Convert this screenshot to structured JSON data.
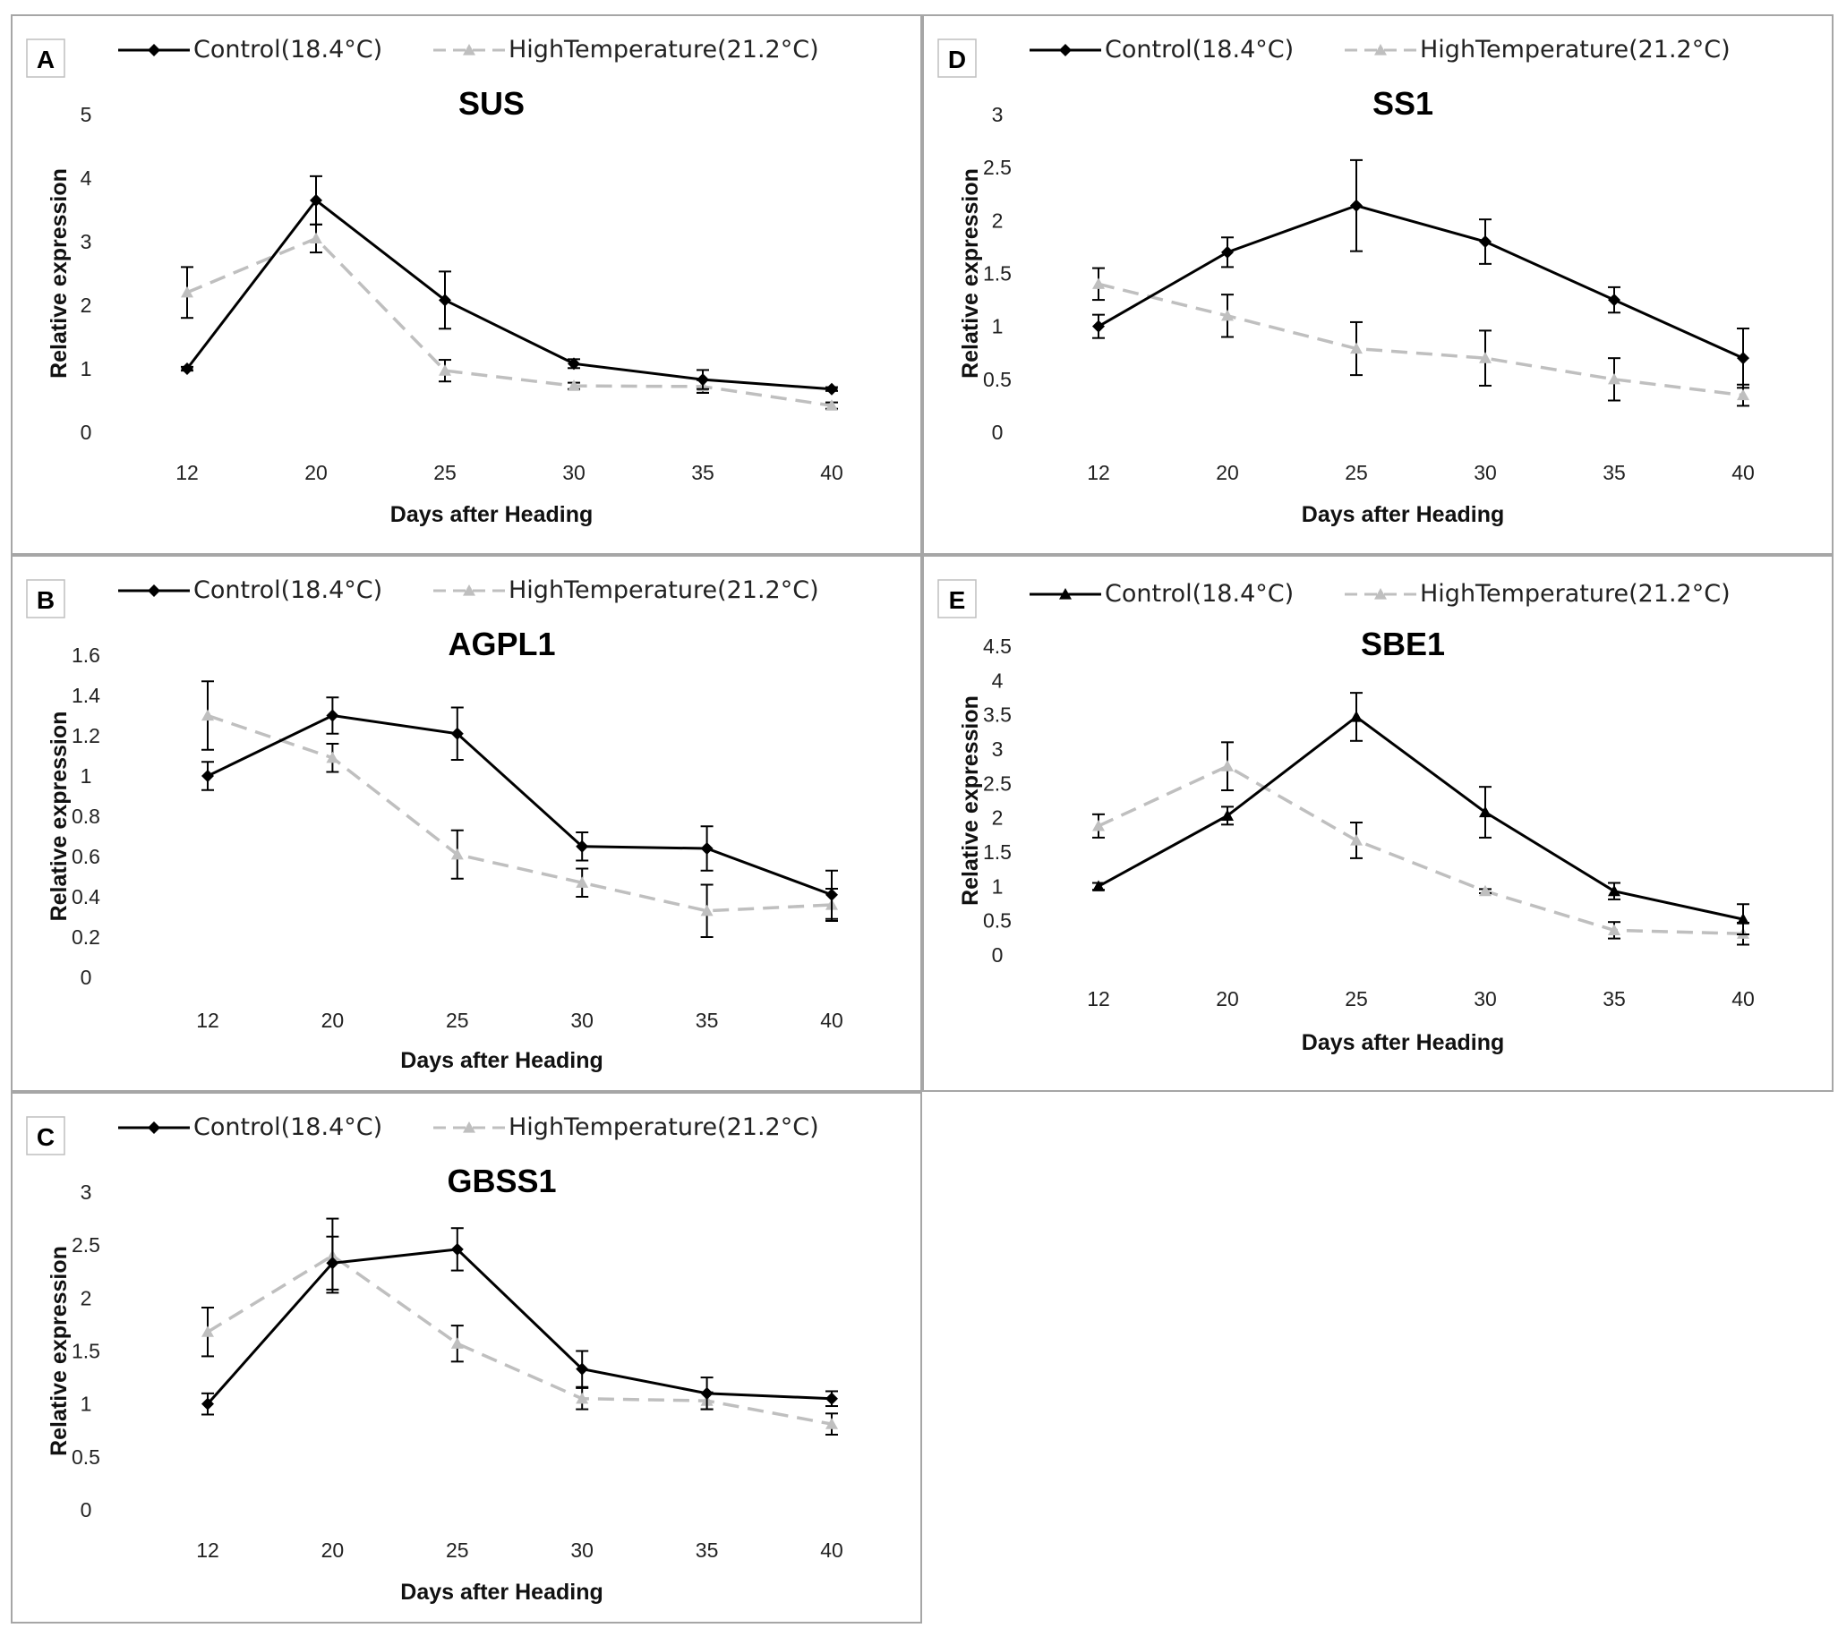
{
  "styles": {
    "control_color": "#000000",
    "heat_color": "#bfbfbf"
  },
  "chart_data": [
    {
      "panel": "A",
      "type": "line",
      "title": "SUS",
      "xlabel": "Days after Heading",
      "ylabel": "Relative expression",
      "categories": [
        "12",
        "20",
        "25",
        "30",
        "35",
        "40"
      ],
      "ylim": [
        0,
        5
      ],
      "yticks": [
        "0",
        "1",
        "2",
        "3",
        "4",
        "5"
      ],
      "series": [
        {
          "name": "Control(18.4°C)",
          "marker": "diamond",
          "values": [
            1.0,
            3.65,
            2.08,
            1.08,
            0.83,
            0.68
          ],
          "errors": [
            0.03,
            0.38,
            0.45,
            0.07,
            0.15,
            0.03
          ]
        },
        {
          "name": "HighTemperature(21.2°C)",
          "marker": "triangle",
          "values": [
            2.2,
            3.05,
            0.97,
            0.73,
            0.72,
            0.42
          ],
          "errors": [
            0.4,
            0.22,
            0.17,
            0.05,
            0.1,
            0.05
          ]
        }
      ],
      "grid": false,
      "legend_position": "top"
    },
    {
      "panel": "D",
      "type": "line",
      "title": "SS1",
      "xlabel": "Days after Heading",
      "ylabel": "Relative expression",
      "categories": [
        "12",
        "20",
        "25",
        "30",
        "35",
        "40"
      ],
      "ylim": [
        0,
        3
      ],
      "yticks": [
        "0",
        "0.5",
        "1",
        "1.5",
        "2",
        "2.5",
        "3"
      ],
      "series": [
        {
          "name": "Control(18.4°C)",
          "marker": "diamond",
          "values": [
            1.0,
            1.7,
            2.14,
            1.8,
            1.25,
            0.7
          ],
          "errors": [
            0.11,
            0.14,
            0.43,
            0.21,
            0.12,
            0.28
          ]
        },
        {
          "name": "HighTemperature(21.2°C)",
          "marker": "triangle",
          "values": [
            1.4,
            1.1,
            0.79,
            0.7,
            0.5,
            0.35
          ],
          "errors": [
            0.15,
            0.2,
            0.25,
            0.26,
            0.2,
            0.1
          ]
        }
      ],
      "grid": false,
      "legend_position": "top"
    },
    {
      "panel": "B",
      "type": "line",
      "title": "AGPL1",
      "xlabel": "Days after Heading",
      "ylabel": "Relative expression",
      "categories": [
        "12",
        "20",
        "25",
        "30",
        "35",
        "40"
      ],
      "ylim": [
        0,
        1.6
      ],
      "yticks": [
        "0",
        "0.2",
        "0.4",
        "0.6",
        "0.8",
        "1",
        "1.2",
        "1.4",
        "1.6"
      ],
      "series": [
        {
          "name": "Control(18.4°C)",
          "marker": "diamond",
          "values": [
            1.0,
            1.3,
            1.21,
            0.65,
            0.64,
            0.41
          ],
          "errors": [
            0.07,
            0.09,
            0.13,
            0.07,
            0.11,
            0.12
          ]
        },
        {
          "name": "HighTemperature(21.2°C)",
          "marker": "triangle",
          "values": [
            1.3,
            1.09,
            0.61,
            0.47,
            0.33,
            0.36
          ],
          "errors": [
            0.17,
            0.07,
            0.12,
            0.07,
            0.13,
            0.08
          ]
        }
      ],
      "grid": false,
      "legend_position": "top"
    },
    {
      "panel": "E",
      "type": "line",
      "title": "SBE1",
      "xlabel": "Days after Heading",
      "ylabel": "Relative expression",
      "categories": [
        "12",
        "20",
        "25",
        "30",
        "35",
        "40"
      ],
      "ylim": [
        0,
        4.5
      ],
      "yticks": [
        "0",
        "0.5",
        "1",
        "1.5",
        "2",
        "2.5",
        "3",
        "3.5",
        "4",
        "4.5"
      ],
      "series": [
        {
          "name": "Control(18.4°C)",
          "marker": "triangle",
          "values": [
            1.0,
            2.03,
            3.47,
            2.08,
            0.93,
            0.52
          ],
          "errors": [
            0.05,
            0.13,
            0.35,
            0.37,
            0.12,
            0.22
          ]
        },
        {
          "name": "HighTemperature(21.2°C)",
          "marker": "triangle",
          "values": [
            1.88,
            2.75,
            1.67,
            0.93,
            0.36,
            0.31
          ],
          "errors": [
            0.17,
            0.35,
            0.26,
            0.03,
            0.12,
            0.16
          ]
        }
      ],
      "grid": false,
      "legend_position": "top"
    },
    {
      "panel": "C",
      "type": "line",
      "title": "GBSS1",
      "xlabel": "Days after Heading",
      "ylabel": "Relative expression",
      "categories": [
        "12",
        "20",
        "25",
        "30",
        "35",
        "40"
      ],
      "ylim": [
        0,
        3
      ],
      "yticks": [
        "0",
        "0.5",
        "1",
        "1.5",
        "2",
        "2.5",
        "3"
      ],
      "series": [
        {
          "name": "Control(18.4°C)",
          "marker": "diamond",
          "values": [
            1.0,
            2.33,
            2.46,
            1.33,
            1.1,
            1.05
          ],
          "errors": [
            0.1,
            0.25,
            0.2,
            0.17,
            0.15,
            0.07
          ]
        },
        {
          "name": "HighTemperature(21.2°C)",
          "marker": "triangle",
          "values": [
            1.68,
            2.4,
            1.57,
            1.05,
            1.03,
            0.81
          ],
          "errors": [
            0.23,
            0.35,
            0.17,
            0.1,
            0.08,
            0.1
          ]
        }
      ],
      "grid": false,
      "legend_position": "top"
    }
  ]
}
